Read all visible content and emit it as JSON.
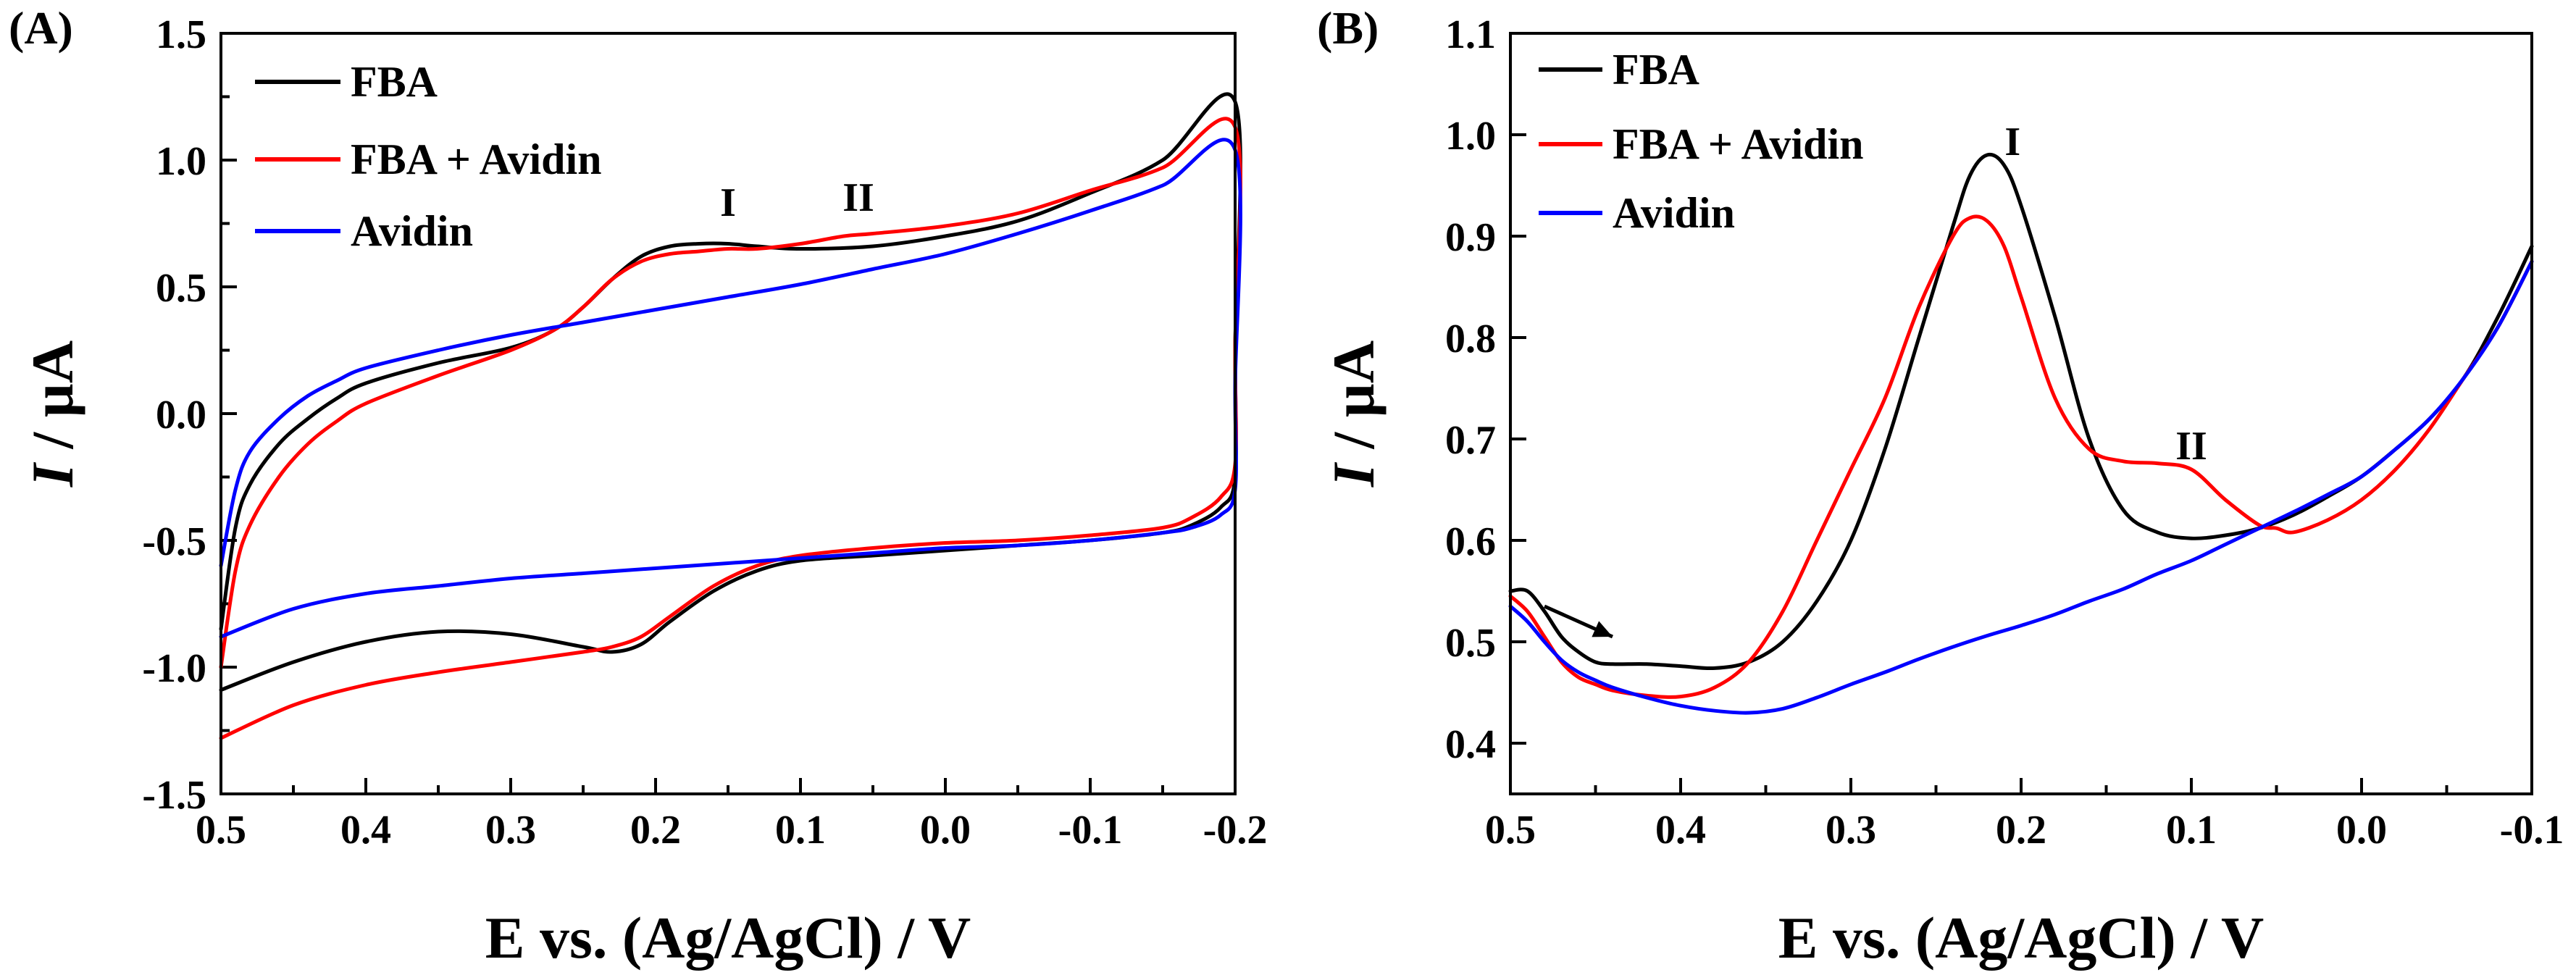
{
  "chart_data": [
    {
      "panel": "(A)",
      "type": "line",
      "xlabel": "E vs. (Ag/AgCl) / V",
      "ylabel": "I / µA",
      "xlim": [
        0.5,
        -0.2
      ],
      "ylim": [
        -1.5,
        1.5
      ],
      "xticks": [
        0.5,
        0.4,
        0.3,
        0.2,
        0.1,
        0.0,
        -0.1,
        -0.2
      ],
      "xtick_labels": [
        "0.5",
        "0.4",
        "0.3",
        "0.2",
        "0.1",
        "0.0",
        "-0.1",
        "-0.2"
      ],
      "yticks": [
        -1.5,
        -1.0,
        -0.5,
        0.0,
        0.5,
        1.0,
        1.5
      ],
      "ytick_labels": [
        "-1.5",
        "-1.0",
        "-0.5",
        "0.0",
        "0.5",
        "1.0",
        "1.5"
      ],
      "legend_position": "top-left",
      "annotations": [
        {
          "text": "I",
          "x": 0.15,
          "y": 0.78
        },
        {
          "text": "II",
          "x": 0.06,
          "y": 0.8
        }
      ],
      "series": [
        {
          "name": "FBA",
          "color": "#000000",
          "x": [
            0.5,
            0.49,
            0.48,
            0.46,
            0.44,
            0.42,
            0.4,
            0.35,
            0.3,
            0.27,
            0.25,
            0.23,
            0.21,
            0.19,
            0.17,
            0.15,
            0.13,
            0.1,
            0.05,
            0.0,
            -0.05,
            -0.1,
            -0.15,
            -0.2,
            -0.2,
            -0.2,
            -0.19,
            -0.17,
            -0.15,
            -0.1,
            -0.05,
            0.0,
            0.05,
            0.1,
            0.13,
            0.16,
            0.19,
            0.21,
            0.23,
            0.25,
            0.3,
            0.35,
            0.4,
            0.45,
            0.5
          ],
          "y": [
            -0.85,
            -0.45,
            -0.28,
            -0.12,
            -0.02,
            0.06,
            0.12,
            0.2,
            0.26,
            0.33,
            0.42,
            0.53,
            0.62,
            0.66,
            0.67,
            0.67,
            0.66,
            0.65,
            0.66,
            0.7,
            0.76,
            0.87,
            1.0,
            1.23,
            0.25,
            -0.25,
            -0.37,
            -0.44,
            -0.47,
            -0.5,
            -0.52,
            -0.54,
            -0.56,
            -0.58,
            -0.62,
            -0.7,
            -0.82,
            -0.91,
            -0.94,
            -0.92,
            -0.87,
            -0.86,
            -0.9,
            -0.98,
            -1.09
          ]
        },
        {
          "name": "FBA + Avidin",
          "color": "#ff0000",
          "x": [
            0.5,
            0.49,
            0.48,
            0.46,
            0.44,
            0.42,
            0.4,
            0.35,
            0.3,
            0.27,
            0.25,
            0.23,
            0.21,
            0.19,
            0.17,
            0.15,
            0.13,
            0.1,
            0.07,
            0.05,
            0.0,
            -0.05,
            -0.1,
            -0.15,
            -0.2,
            -0.2,
            -0.2,
            -0.19,
            -0.17,
            -0.15,
            -0.1,
            -0.05,
            0.0,
            0.05,
            0.1,
            0.13,
            0.16,
            0.19,
            0.21,
            0.23,
            0.25,
            0.3,
            0.35,
            0.4,
            0.45,
            0.5
          ],
          "y": [
            -1.0,
            -0.62,
            -0.44,
            -0.25,
            -0.12,
            -0.03,
            0.04,
            0.15,
            0.25,
            0.33,
            0.42,
            0.53,
            0.6,
            0.63,
            0.64,
            0.65,
            0.65,
            0.67,
            0.7,
            0.71,
            0.74,
            0.79,
            0.88,
            0.97,
            1.13,
            0.25,
            -0.2,
            -0.33,
            -0.41,
            -0.45,
            -0.48,
            -0.5,
            -0.51,
            -0.53,
            -0.56,
            -0.6,
            -0.68,
            -0.8,
            -0.88,
            -0.92,
            -0.94,
            -0.98,
            -1.02,
            -1.07,
            -1.15,
            -1.28
          ]
        },
        {
          "name": "Avidin",
          "color": "#0000ff",
          "x": [
            0.5,
            0.49,
            0.48,
            0.46,
            0.44,
            0.42,
            0.4,
            0.35,
            0.3,
            0.25,
            0.2,
            0.15,
            0.1,
            0.05,
            0.0,
            -0.05,
            -0.1,
            -0.15,
            -0.2,
            -0.2,
            -0.2,
            -0.19,
            -0.17,
            -0.15,
            -0.1,
            -0.05,
            0.0,
            0.05,
            0.1,
            0.15,
            0.2,
            0.25,
            0.3,
            0.35,
            0.4,
            0.45,
            0.5
          ],
          "y": [
            -0.6,
            -0.3,
            -0.15,
            -0.02,
            0.07,
            0.13,
            0.18,
            0.25,
            0.31,
            0.36,
            0.41,
            0.46,
            0.51,
            0.57,
            0.63,
            0.71,
            0.8,
            0.9,
            1.04,
            0.1,
            -0.3,
            -0.4,
            -0.45,
            -0.47,
            -0.5,
            -0.52,
            -0.53,
            -0.55,
            -0.57,
            -0.59,
            -0.61,
            -0.63,
            -0.65,
            -0.68,
            -0.71,
            -0.77,
            -0.88
          ]
        }
      ]
    },
    {
      "panel": "(B)",
      "type": "line",
      "xlabel": "E vs. (Ag/AgCl) / V",
      "ylabel": "I / µA",
      "xlim": [
        0.5,
        -0.1
      ],
      "ylim": [
        0.35,
        1.1
      ],
      "xticks": [
        0.5,
        0.4,
        0.3,
        0.2,
        0.1,
        0.0,
        -0.1
      ],
      "xtick_labels": [
        "0.5",
        "0.4",
        "0.3",
        "0.2",
        "0.1",
        "0.0",
        "-0.1"
      ],
      "yticks": [
        0.4,
        0.5,
        0.6,
        0.7,
        0.8,
        0.9,
        1.0,
        1.1
      ],
      "ytick_labels": [
        "0.4",
        "0.5",
        "0.6",
        "0.7",
        "0.8",
        "0.9",
        "1.0",
        "1.1"
      ],
      "legend_position": "top-left",
      "annotations": [
        {
          "text": "I",
          "x": 0.205,
          "y": 0.98
        },
        {
          "text": "II",
          "x": 0.1,
          "y": 0.68
        }
      ],
      "arrow": {
        "from": [
          0.48,
          0.535
        ],
        "to": [
          0.44,
          0.505
        ]
      },
      "series": [
        {
          "name": "FBA",
          "color": "#000000",
          "x": [
            0.5,
            0.49,
            0.48,
            0.47,
            0.46,
            0.45,
            0.44,
            0.42,
            0.4,
            0.38,
            0.36,
            0.34,
            0.32,
            0.3,
            0.28,
            0.26,
            0.24,
            0.23,
            0.22,
            0.21,
            0.2,
            0.18,
            0.16,
            0.14,
            0.12,
            0.1,
            0.08,
            0.06,
            0.04,
            0.02,
            0.0,
            -0.02,
            -0.04,
            -0.06,
            -0.08,
            -0.1
          ],
          "y": [
            0.55,
            0.55,
            0.53,
            0.505,
            0.49,
            0.48,
            0.478,
            0.478,
            0.476,
            0.474,
            0.48,
            0.5,
            0.54,
            0.6,
            0.69,
            0.8,
            0.91,
            0.96,
            0.98,
            0.97,
            0.93,
            0.82,
            0.7,
            0.63,
            0.608,
            0.602,
            0.605,
            0.612,
            0.625,
            0.643,
            0.663,
            0.69,
            0.72,
            0.76,
            0.82,
            0.89
          ]
        },
        {
          "name": "FBA + Avidin",
          "color": "#ff0000",
          "x": [
            0.5,
            0.49,
            0.48,
            0.47,
            0.46,
            0.45,
            0.44,
            0.42,
            0.4,
            0.38,
            0.36,
            0.34,
            0.32,
            0.3,
            0.28,
            0.26,
            0.24,
            0.23,
            0.22,
            0.21,
            0.2,
            0.18,
            0.16,
            0.14,
            0.12,
            0.1,
            0.08,
            0.06,
            0.05,
            0.04,
            0.02,
            0.0,
            -0.02,
            -0.04,
            -0.06,
            -0.08,
            -0.1
          ],
          "y": [
            0.545,
            0.53,
            0.505,
            0.48,
            0.465,
            0.458,
            0.452,
            0.447,
            0.446,
            0.455,
            0.48,
            0.53,
            0.6,
            0.67,
            0.74,
            0.83,
            0.9,
            0.918,
            0.915,
            0.89,
            0.84,
            0.74,
            0.69,
            0.678,
            0.676,
            0.67,
            0.64,
            0.615,
            0.612,
            0.608,
            0.62,
            0.64,
            0.67,
            0.71,
            0.76,
            0.81,
            0.875
          ]
        },
        {
          "name": "Avidin",
          "color": "#0000ff",
          "x": [
            0.5,
            0.49,
            0.48,
            0.47,
            0.46,
            0.45,
            0.44,
            0.42,
            0.4,
            0.38,
            0.36,
            0.34,
            0.32,
            0.3,
            0.28,
            0.26,
            0.24,
            0.22,
            0.2,
            0.18,
            0.16,
            0.14,
            0.12,
            0.1,
            0.08,
            0.06,
            0.04,
            0.02,
            0.0,
            -0.02,
            -0.04,
            -0.06,
            -0.08,
            -0.1
          ],
          "y": [
            0.535,
            0.52,
            0.5,
            0.482,
            0.47,
            0.462,
            0.455,
            0.445,
            0.437,
            0.432,
            0.43,
            0.434,
            0.445,
            0.458,
            0.47,
            0.483,
            0.495,
            0.506,
            0.516,
            0.527,
            0.54,
            0.552,
            0.567,
            0.58,
            0.596,
            0.612,
            0.628,
            0.645,
            0.663,
            0.69,
            0.72,
            0.76,
            0.81,
            0.875
          ]
        }
      ]
    }
  ]
}
